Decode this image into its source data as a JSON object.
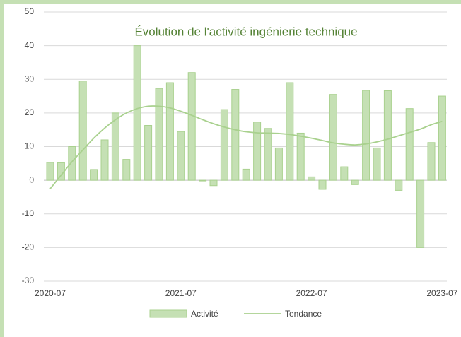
{
  "chart_data": {
    "type": "bar",
    "title": "Évolution de l'activité ingénierie technique",
    "categories": [
      "2020-07",
      null,
      null,
      null,
      null,
      null,
      null,
      null,
      null,
      null,
      null,
      null,
      "2021-07",
      null,
      null,
      null,
      null,
      null,
      null,
      null,
      null,
      null,
      null,
      null,
      "2022-07",
      null,
      null,
      null,
      null,
      null,
      null,
      null,
      null,
      null,
      null,
      null,
      "2023-07"
    ],
    "series": [
      {
        "name": "Activité",
        "type": "bar",
        "color": "#c5e0b4",
        "edge": "#a9d18e",
        "values": [
          5.3,
          5.2,
          10,
          29.5,
          3.2,
          12,
          20,
          6.2,
          40,
          16.3,
          27.3,
          29,
          14.5,
          32,
          -0.2,
          -1.6,
          21,
          27,
          3.3,
          17.3,
          15.4,
          9.6,
          29,
          14,
          1,
          -2.7,
          25.5,
          4,
          -1.3,
          26.7,
          9.6,
          26.6,
          -3,
          21.3,
          -20,
          11.2,
          25
        ]
      },
      {
        "name": "Tendance",
        "type": "line",
        "color": "#a9d18e",
        "values": [
          -2.5,
          1.5,
          5.5,
          9,
          12.5,
          15.5,
          18,
          20,
          21.3,
          22,
          22,
          21.5,
          20.5,
          19.3,
          18,
          16.8,
          15.8,
          15,
          14.4,
          14.1,
          14,
          13.9,
          13.6,
          13.1,
          12.5,
          11.8,
          11.1,
          10.7,
          10.5,
          10.8,
          11.4,
          12.2,
          13.2,
          14.2,
          15.2,
          16.5,
          17.5
        ]
      }
    ],
    "ylim": [
      -30,
      50
    ],
    "yticks": [
      -30,
      -20,
      -10,
      0,
      10,
      20,
      30,
      40,
      50
    ],
    "grid": true,
    "legend": "bottom"
  }
}
